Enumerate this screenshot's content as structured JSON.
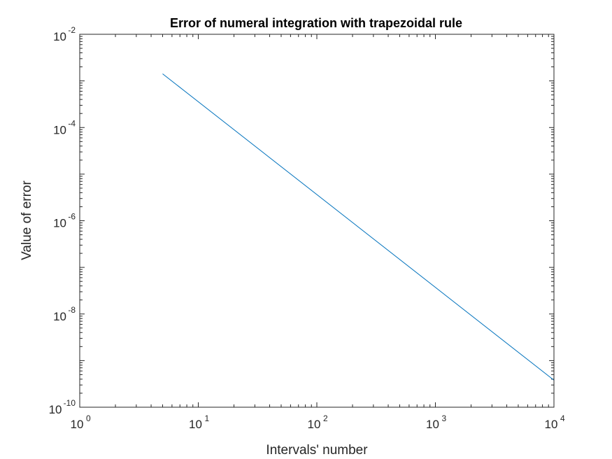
{
  "chart_data": {
    "type": "line",
    "title": "Error of numeral integration with trapezoidal rule",
    "xlabel": "Intervals' number",
    "ylabel": "Value of error",
    "xscale": "log",
    "yscale": "log",
    "xlim": [
      1,
      10000
    ],
    "ylim": [
      1e-10,
      0.01
    ],
    "x_ticks": [
      {
        "value": 1,
        "base": "10",
        "exp": "0"
      },
      {
        "value": 10,
        "base": "10",
        "exp": "1"
      },
      {
        "value": 100,
        "base": "10",
        "exp": "2"
      },
      {
        "value": 1000,
        "base": "10",
        "exp": "3"
      },
      {
        "value": 10000,
        "base": "10",
        "exp": "4"
      }
    ],
    "y_ticks": [
      {
        "value": 1e-10,
        "base": "10",
        "exp": "-10"
      },
      {
        "value": 1e-08,
        "base": "10",
        "exp": "-8"
      },
      {
        "value": 1e-06,
        "base": "10",
        "exp": "-6"
      },
      {
        "value": 0.0001,
        "base": "10",
        "exp": "-4"
      },
      {
        "value": 0.01,
        "base": "10",
        "exp": "-2"
      }
    ],
    "grid": false,
    "legend": "none",
    "series": [
      {
        "color": "#0072bd",
        "x": [
          5,
          10000
        ],
        "y": [
          0.00142,
          3.8e-10
        ]
      }
    ]
  }
}
